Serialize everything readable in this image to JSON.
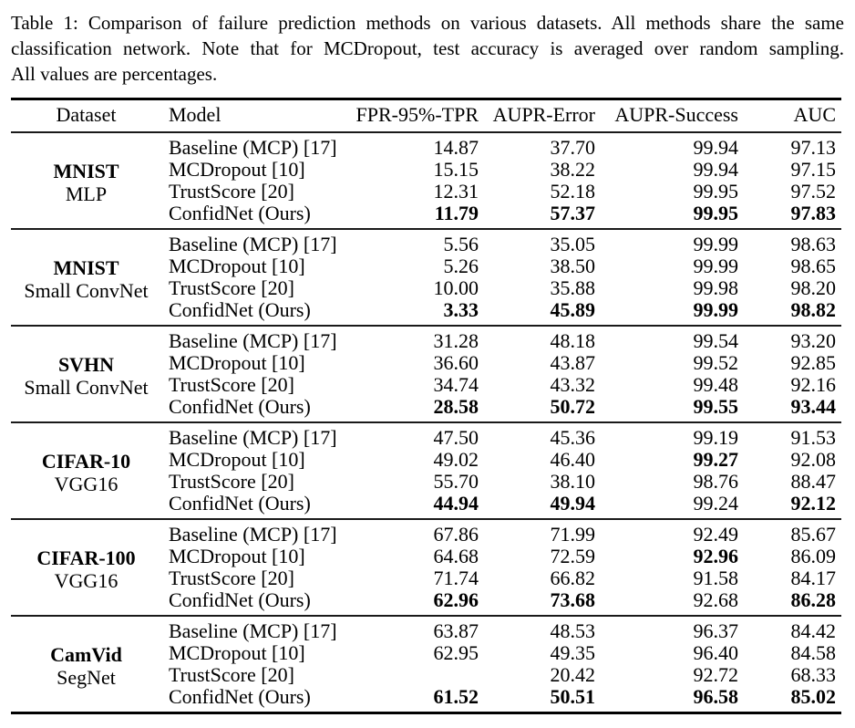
{
  "caption": {
    "full_text": "Table 1: Comparison of failure prediction methods on various datasets. All methods share the same classification network. Note that for MCDropout, test accuracy is averaged over random sampling. All values are percentages.",
    "lines": [
      "Table 1: Comparison of failure prediction methods on various datasets. All methods share the same",
      "classification network. Note that for MCDropout, test accuracy is averaged over random sampling.",
      "All values are percentages."
    ]
  },
  "table": {
    "headers": [
      "Dataset",
      "Model",
      "FPR-95%-TPR",
      "AUPR-Error",
      "AUPR-Success",
      "AUC"
    ],
    "groups": [
      {
        "dataset": "MNIST",
        "network": "MLP",
        "rows": [
          {
            "model": "Baseline (MCP) [17]",
            "values": [
              "14.87",
              "37.70",
              "99.94",
              "97.13"
            ],
            "bold": [
              false,
              false,
              false,
              false
            ]
          },
          {
            "model": "MCDropout [10]",
            "values": [
              "15.15",
              "38.22",
              "99.94",
              "97.15"
            ],
            "bold": [
              false,
              false,
              false,
              false
            ]
          },
          {
            "model": "TrustScore [20]",
            "values": [
              "12.31",
              "52.18",
              "99.95",
              "97.52"
            ],
            "bold": [
              false,
              false,
              false,
              false
            ]
          },
          {
            "model": "ConfidNet (Ours)",
            "values": [
              "11.79",
              "57.37",
              "99.95",
              "97.83"
            ],
            "bold": [
              true,
              true,
              true,
              true
            ]
          }
        ]
      },
      {
        "dataset": "MNIST",
        "network": "Small ConvNet",
        "rows": [
          {
            "model": "Baseline (MCP) [17]",
            "values": [
              "5.56",
              "35.05",
              "99.99",
              "98.63"
            ],
            "bold": [
              false,
              false,
              false,
              false
            ]
          },
          {
            "model": "MCDropout [10]",
            "values": [
              "5.26",
              "38.50",
              "99.99",
              "98.65"
            ],
            "bold": [
              false,
              false,
              false,
              false
            ]
          },
          {
            "model": "TrustScore [20]",
            "values": [
              "10.00",
              "35.88",
              "99.98",
              "98.20"
            ],
            "bold": [
              false,
              false,
              false,
              false
            ]
          },
          {
            "model": "ConfidNet (Ours)",
            "values": [
              "3.33",
              "45.89",
              "99.99",
              "98.82"
            ],
            "bold": [
              true,
              true,
              true,
              true
            ]
          }
        ]
      },
      {
        "dataset": "SVHN",
        "network": "Small ConvNet",
        "rows": [
          {
            "model": "Baseline (MCP) [17]",
            "values": [
              "31.28",
              "48.18",
              "99.54",
              "93.20"
            ],
            "bold": [
              false,
              false,
              false,
              false
            ]
          },
          {
            "model": "MCDropout [10]",
            "values": [
              "36.60",
              "43.87",
              "99.52",
              "92.85"
            ],
            "bold": [
              false,
              false,
              false,
              false
            ]
          },
          {
            "model": "TrustScore [20]",
            "values": [
              "34.74",
              "43.32",
              "99.48",
              "92.16"
            ],
            "bold": [
              false,
              false,
              false,
              false
            ]
          },
          {
            "model": "ConfidNet (Ours)",
            "values": [
              "28.58",
              "50.72",
              "99.55",
              "93.44"
            ],
            "bold": [
              true,
              true,
              true,
              true
            ]
          }
        ]
      },
      {
        "dataset": "CIFAR-10",
        "network": "VGG16",
        "rows": [
          {
            "model": "Baseline (MCP) [17]",
            "values": [
              "47.50",
              "45.36",
              "99.19",
              "91.53"
            ],
            "bold": [
              false,
              false,
              false,
              false
            ]
          },
          {
            "model": "MCDropout [10]",
            "values": [
              "49.02",
              "46.40",
              "99.27",
              "92.08"
            ],
            "bold": [
              false,
              false,
              true,
              false
            ]
          },
          {
            "model": "TrustScore [20]",
            "values": [
              "55.70",
              "38.10",
              "98.76",
              "88.47"
            ],
            "bold": [
              false,
              false,
              false,
              false
            ]
          },
          {
            "model": "ConfidNet (Ours)",
            "values": [
              "44.94",
              "49.94",
              "99.24",
              "92.12"
            ],
            "bold": [
              true,
              true,
              false,
              true
            ]
          }
        ]
      },
      {
        "dataset": "CIFAR-100",
        "network": "VGG16",
        "rows": [
          {
            "model": "Baseline (MCP) [17]",
            "values": [
              "67.86",
              "71.99",
              "92.49",
              "85.67"
            ],
            "bold": [
              false,
              false,
              false,
              false
            ]
          },
          {
            "model": "MCDropout [10]",
            "values": [
              "64.68",
              "72.59",
              "92.96",
              "86.09"
            ],
            "bold": [
              false,
              false,
              true,
              false
            ]
          },
          {
            "model": "TrustScore [20]",
            "values": [
              "71.74",
              "66.82",
              "91.58",
              "84.17"
            ],
            "bold": [
              false,
              false,
              false,
              false
            ]
          },
          {
            "model": "ConfidNet (Ours)",
            "values": [
              "62.96",
              "73.68",
              "92.68",
              "86.28"
            ],
            "bold": [
              true,
              true,
              false,
              true
            ]
          }
        ]
      },
      {
        "dataset": "CamVid",
        "network": "SegNet",
        "rows": [
          {
            "model": "Baseline (MCP) [17]",
            "values": [
              "63.87",
              "48.53",
              "96.37",
              "84.42"
            ],
            "bold": [
              false,
              false,
              false,
              false
            ]
          },
          {
            "model": "MCDropout [10]",
            "values": [
              "62.95",
              "49.35",
              "96.40",
              "84.58"
            ],
            "bold": [
              false,
              false,
              false,
              false
            ]
          },
          {
            "model": "TrustScore [20]",
            "values": [
              "",
              "20.42",
              "92.72",
              "68.33"
            ],
            "bold": [
              false,
              false,
              false,
              false
            ]
          },
          {
            "model": "ConfidNet (Ours)",
            "values": [
              "61.52",
              "50.51",
              "96.58",
              "85.02"
            ],
            "bold": [
              true,
              true,
              true,
              true
            ]
          }
        ]
      }
    ]
  },
  "colors": {
    "text": "#000000",
    "background": "#ffffff",
    "rule_heavy": "#000000",
    "rule_light": "#1a1a1a"
  }
}
